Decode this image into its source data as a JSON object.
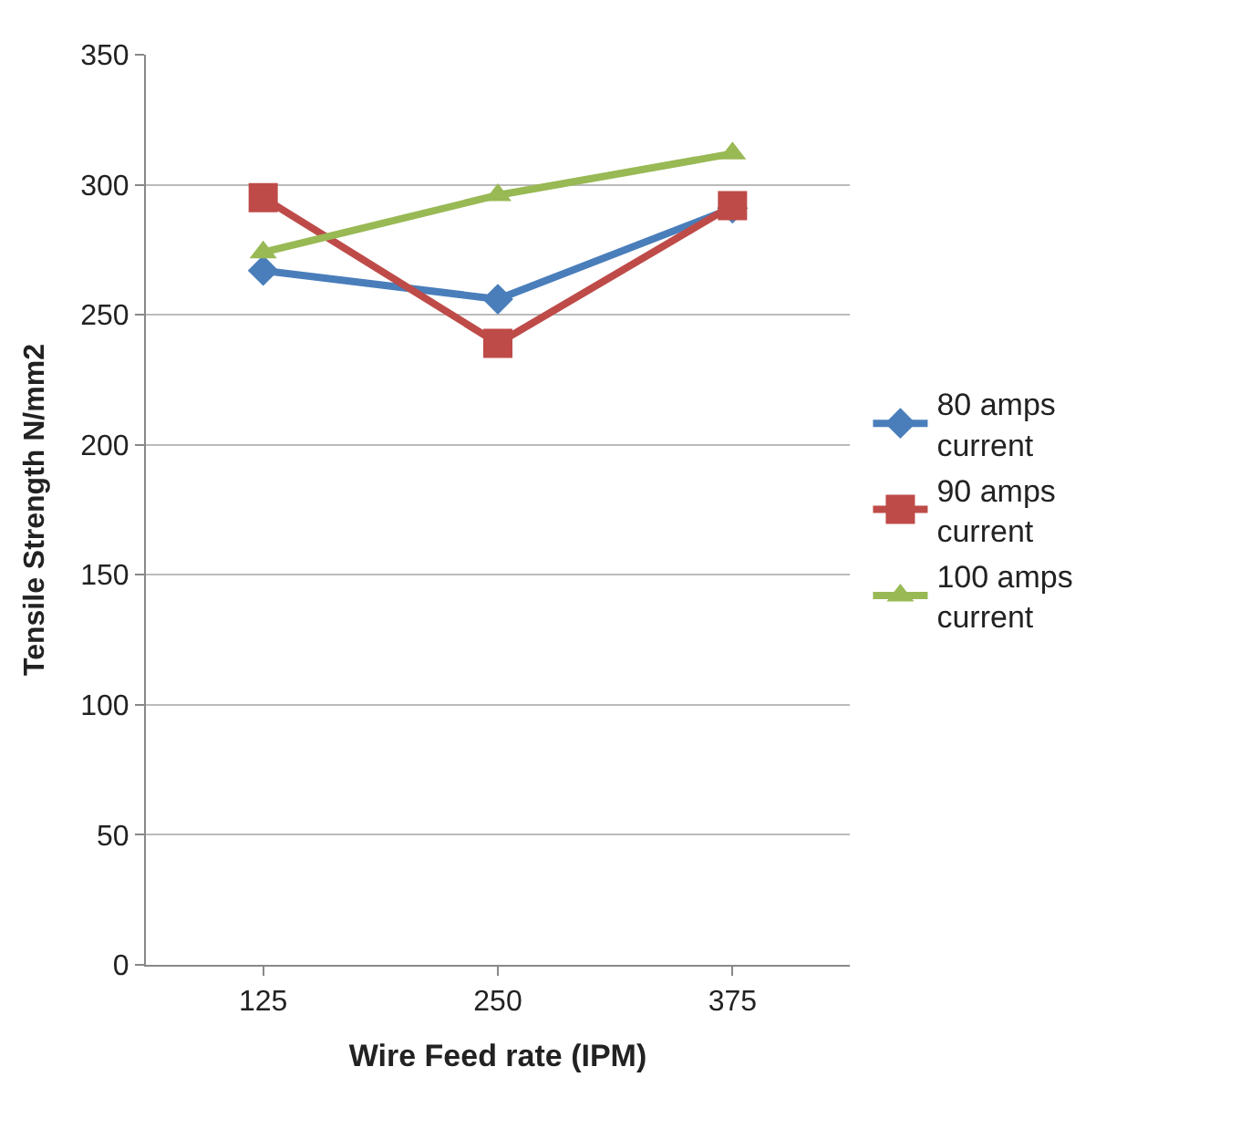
{
  "chart_data": {
    "type": "line",
    "xlabel": "Wire Feed rate (IPM)",
    "ylabel": "Tensile Strength N/mm2",
    "categories": [
      "125",
      "250",
      "375"
    ],
    "series": [
      {
        "name": "80 amps current",
        "color": "#4a7ebb",
        "marker": "diamond",
        "values": [
          267,
          256,
          291
        ]
      },
      {
        "name": "90 amps current",
        "color": "#be4b48",
        "marker": "square",
        "values": [
          295,
          239,
          292
        ]
      },
      {
        "name": "100 amps current",
        "color": "#98b954",
        "marker": "triangle",
        "values": [
          274,
          296,
          312
        ]
      }
    ],
    "ylim": [
      0,
      350
    ],
    "yticks": [
      0,
      50,
      100,
      150,
      200,
      250,
      300,
      350
    ],
    "grid": "y",
    "legend": "right",
    "line_style": "solid"
  }
}
